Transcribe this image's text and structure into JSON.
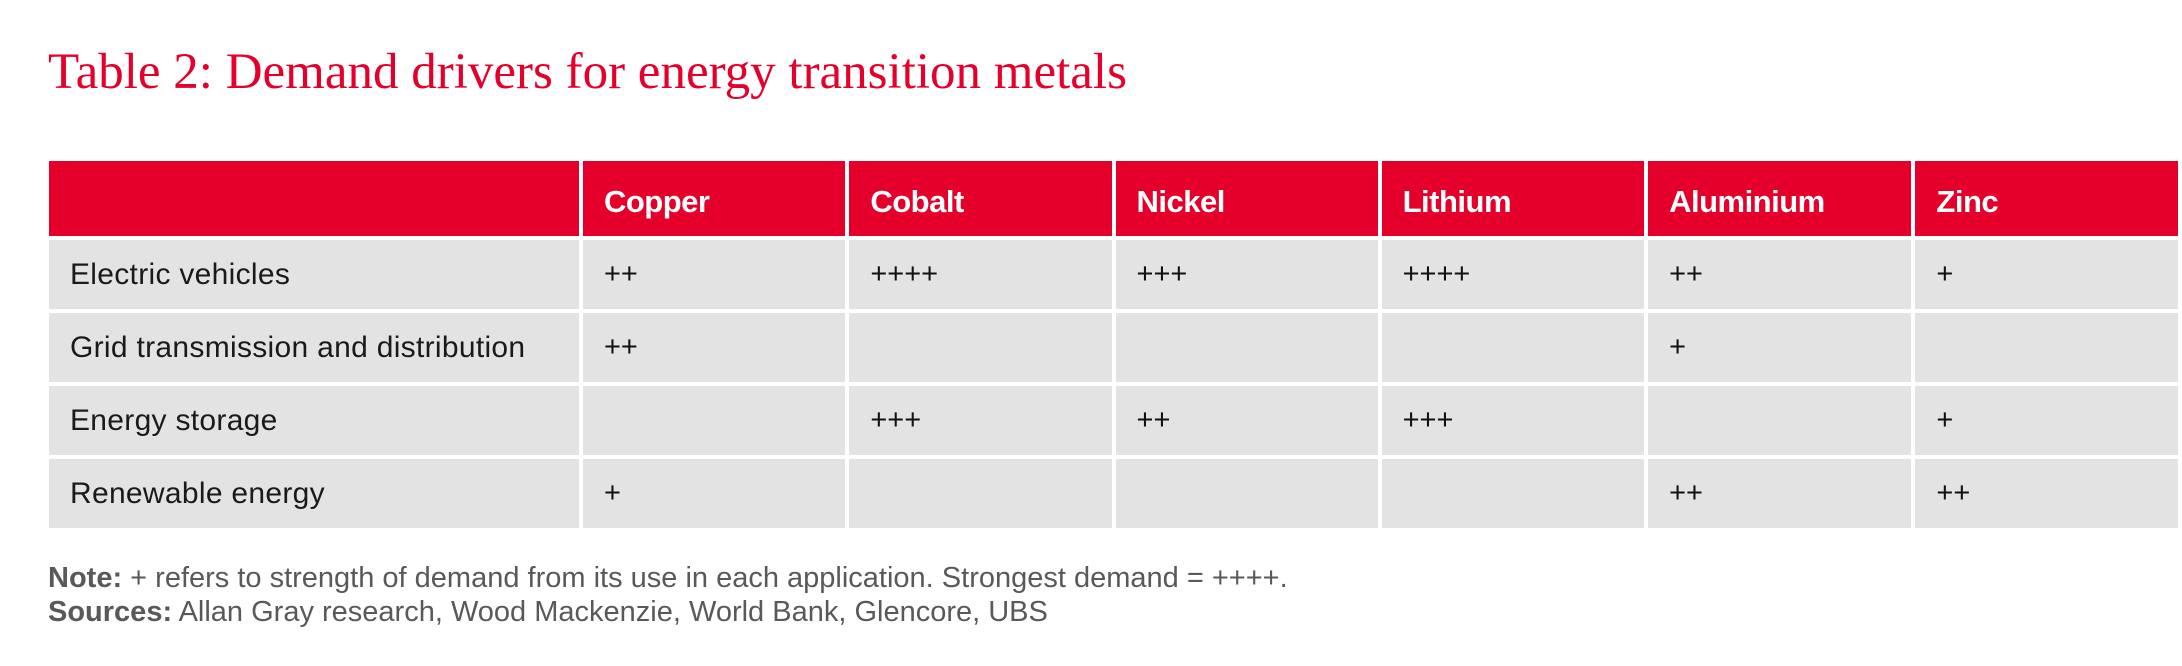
{
  "title": "Table 2: Demand drivers for energy transition metals",
  "table": {
    "columns": [
      "",
      "Copper",
      "Cobalt",
      "Nickel",
      "Lithium",
      "Aluminium",
      "Zinc"
    ],
    "rows": [
      {
        "label": "Electric vehicles",
        "values": [
          "++",
          "++++",
          "+++",
          "++++",
          "++",
          "+"
        ]
      },
      {
        "label": "Grid transmission and distribution",
        "values": [
          "++",
          "",
          "",
          "",
          "+",
          ""
        ]
      },
      {
        "label": "Energy storage",
        "values": [
          "",
          "+++",
          "++",
          "+++",
          "",
          "+"
        ]
      },
      {
        "label": "Renewable energy",
        "values": [
          "+",
          "",
          "",
          "",
          "++",
          "++"
        ]
      }
    ]
  },
  "note": {
    "label": "Note:",
    "text": " + refers to strength of demand from its use in each application. Strongest demand = ++++."
  },
  "sources": {
    "label": "Sources:",
    "text": " Allan Gray research, Wood Mackenzie, World Bank, Glencore, UBS"
  }
}
